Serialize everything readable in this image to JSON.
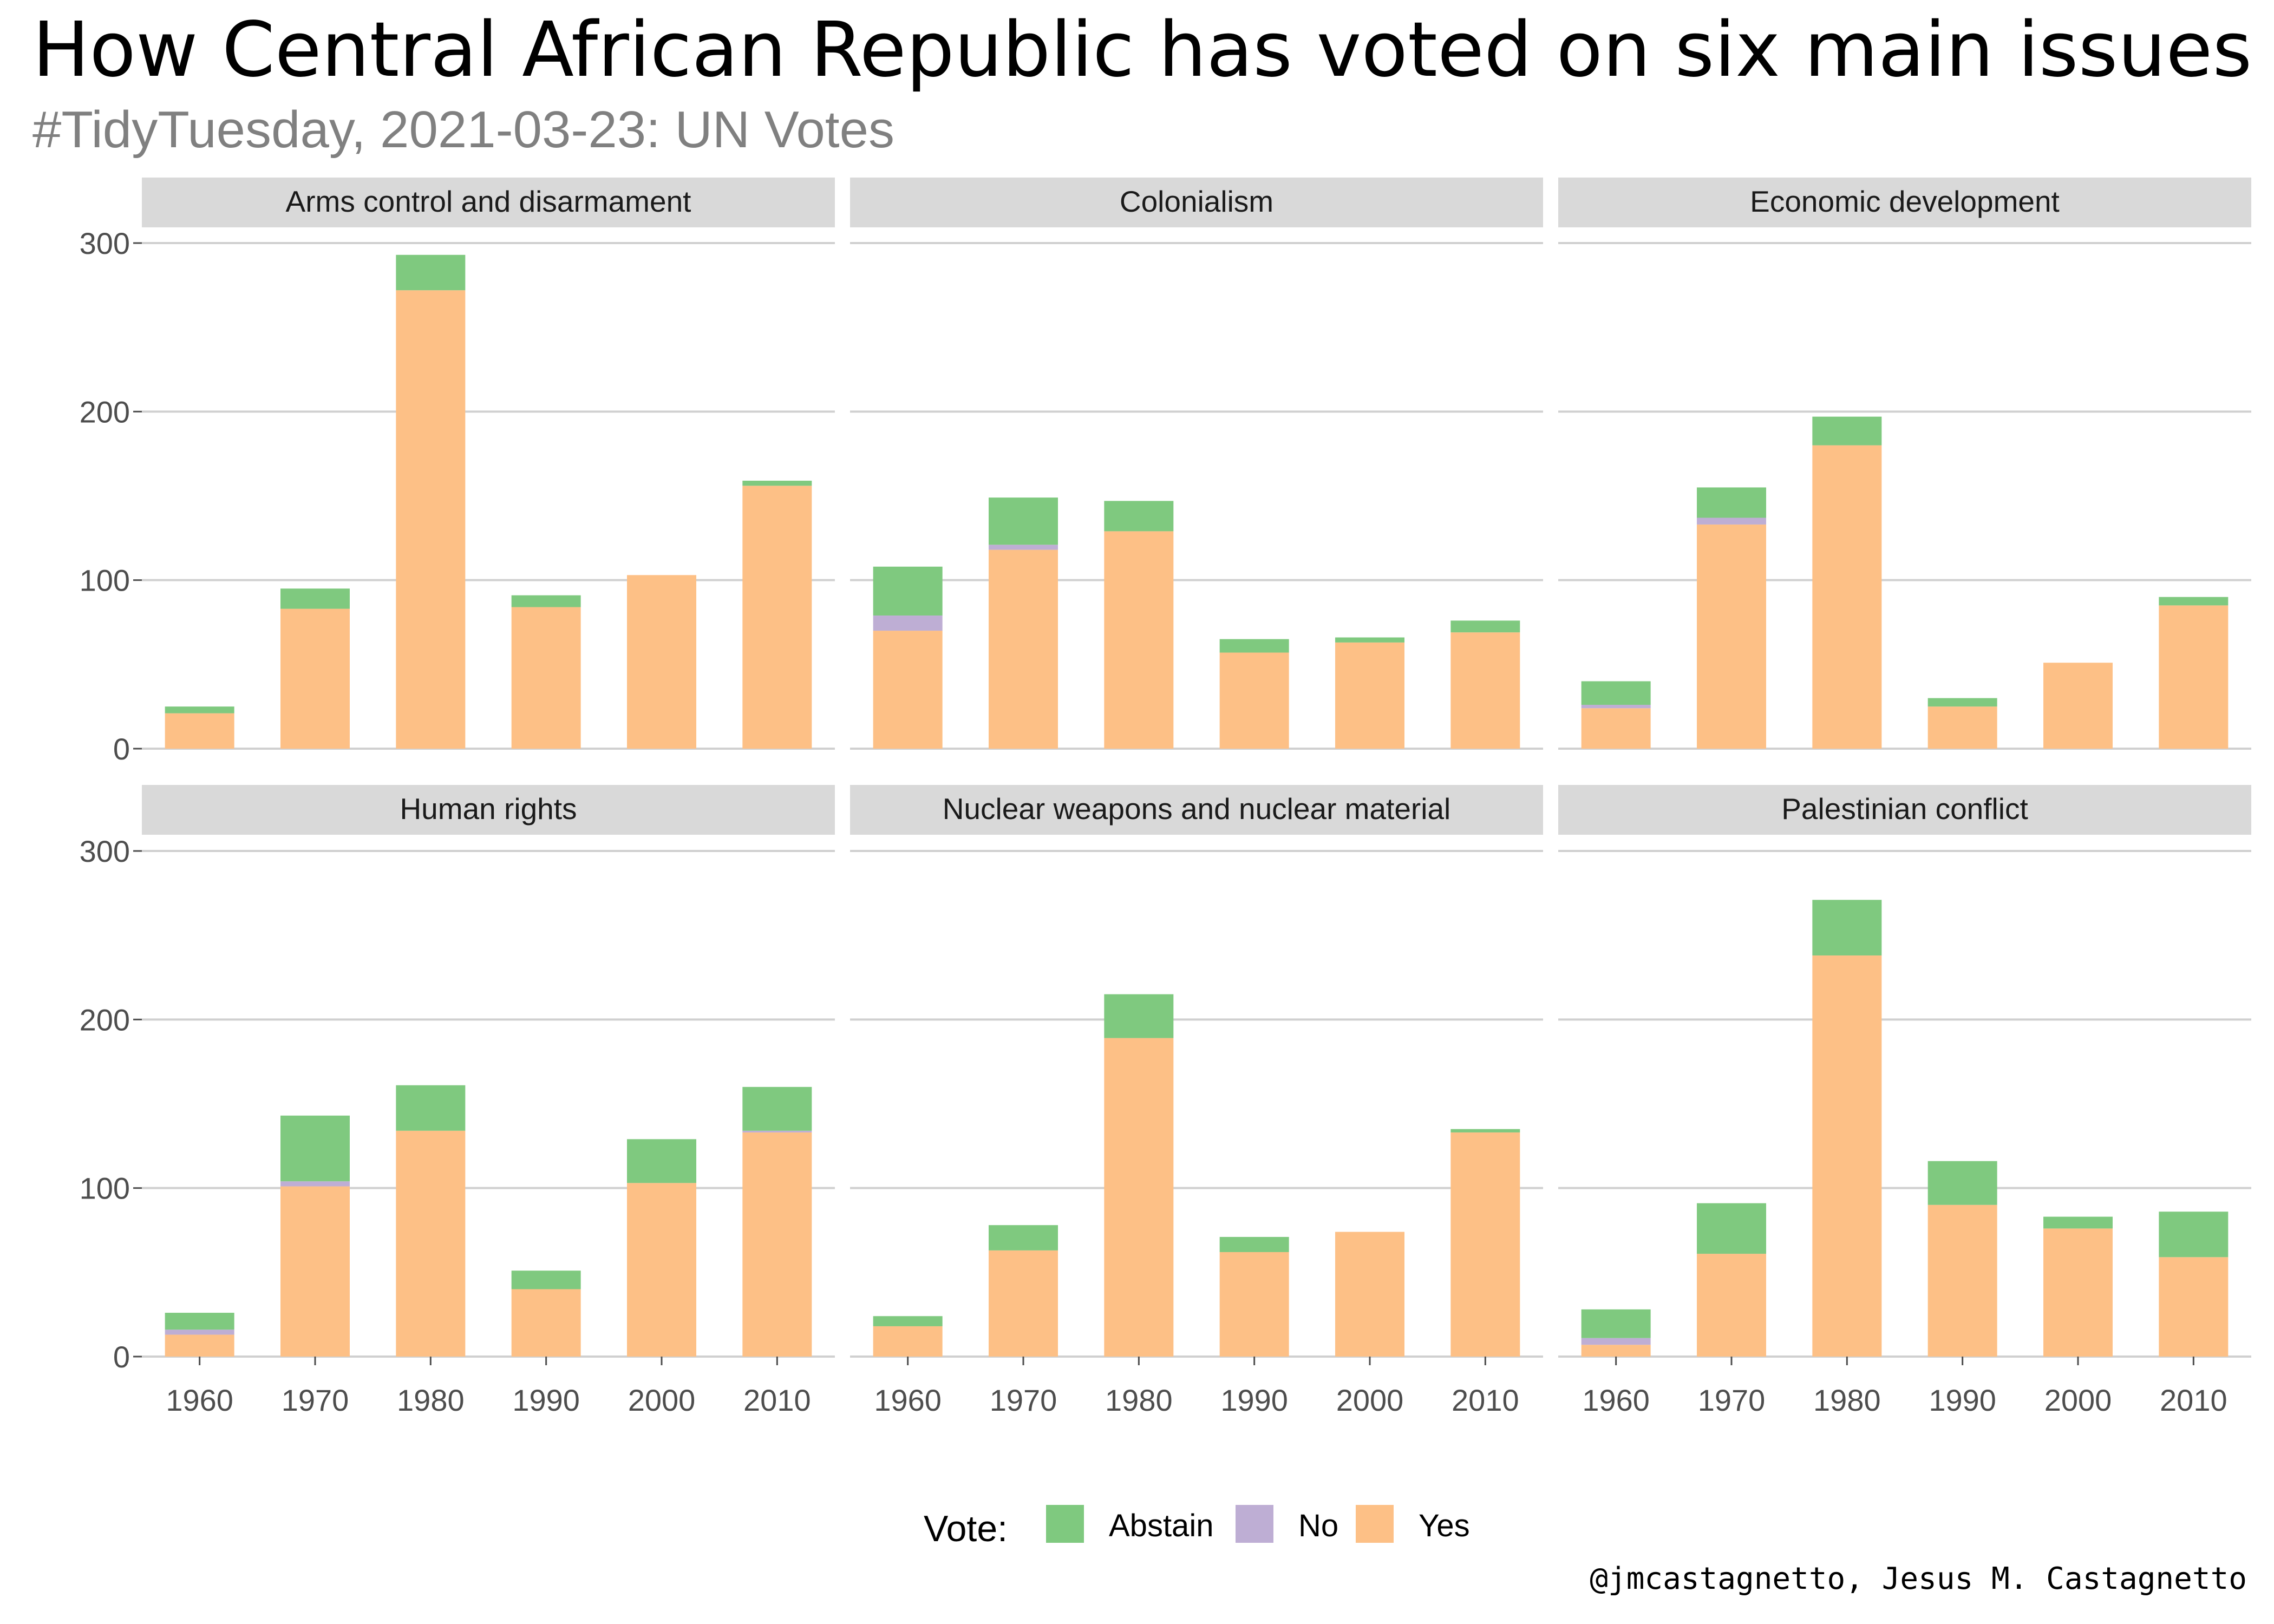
{
  "title": "How Central African Republic has voted on six main issues in the",
  "subtitle": "#TidyTuesday, 2021-03-23: UN Votes",
  "caption": "@jmcastagnetto, Jesus M. Castagnetto",
  "legend": {
    "title": "Vote:",
    "items": [
      {
        "label": "Abstain",
        "color": "#7FC97F"
      },
      {
        "label": "No",
        "color": "#BEAED4"
      },
      {
        "label": "Yes",
        "color": "#FDC086"
      }
    ]
  },
  "chart_data": {
    "type": "bar",
    "stacked": true,
    "facets": [
      {
        "name": "Arms control and disarmament",
        "categories": [
          "1960",
          "1970",
          "1980",
          "1990",
          "2000",
          "2010"
        ],
        "series": [
          {
            "name": "Yes",
            "values": [
              21,
              83,
              272,
              84,
              103,
              156
            ]
          },
          {
            "name": "No",
            "values": [
              0,
              0,
              0,
              0,
              0,
              0
            ]
          },
          {
            "name": "Abstain",
            "values": [
              4,
              12,
              21,
              7,
              0,
              3
            ]
          }
        ]
      },
      {
        "name": "Colonialism",
        "categories": [
          "1960",
          "1970",
          "1980",
          "1990",
          "2000",
          "2010"
        ],
        "series": [
          {
            "name": "Yes",
            "values": [
              70,
              118,
              129,
              57,
              63,
              69
            ]
          },
          {
            "name": "No",
            "values": [
              9,
              3,
              0,
              0,
              0,
              0
            ]
          },
          {
            "name": "Abstain",
            "values": [
              29,
              28,
              18,
              8,
              3,
              7
            ]
          }
        ]
      },
      {
        "name": "Economic development",
        "categories": [
          "1960",
          "1970",
          "1980",
          "1990",
          "2000",
          "2010"
        ],
        "series": [
          {
            "name": "Yes",
            "values": [
              24,
              133,
              180,
              25,
              51,
              85
            ]
          },
          {
            "name": "No",
            "values": [
              2,
              4,
              0,
              0,
              0,
              0
            ]
          },
          {
            "name": "Abstain",
            "values": [
              14,
              18,
              17,
              5,
              0,
              5
            ]
          }
        ]
      },
      {
        "name": "Human rights",
        "categories": [
          "1960",
          "1970",
          "1980",
          "1990",
          "2000",
          "2010"
        ],
        "series": [
          {
            "name": "Yes",
            "values": [
              13,
              101,
              134,
              40,
              103,
              133
            ]
          },
          {
            "name": "No",
            "values": [
              3,
              3,
              0,
              0,
              0,
              1
            ]
          },
          {
            "name": "Abstain",
            "values": [
              10,
              39,
              27,
              11,
              26,
              26
            ]
          }
        ]
      },
      {
        "name": "Nuclear weapons and nuclear material",
        "categories": [
          "1960",
          "1970",
          "1980",
          "1990",
          "2000",
          "2010"
        ],
        "series": [
          {
            "name": "Yes",
            "values": [
              18,
              63,
              189,
              62,
              74,
              133
            ]
          },
          {
            "name": "No",
            "values": [
              0,
              0,
              0,
              0,
              0,
              0
            ]
          },
          {
            "name": "Abstain",
            "values": [
              6,
              15,
              26,
              9,
              0,
              2
            ]
          }
        ]
      },
      {
        "name": "Palestinian conflict",
        "categories": [
          "1960",
          "1970",
          "1980",
          "1990",
          "2000",
          "2010"
        ],
        "series": [
          {
            "name": "Yes",
            "values": [
              7,
              61,
              238,
              90,
              76,
              59
            ]
          },
          {
            "name": "No",
            "values": [
              4,
              0,
              0,
              0,
              0,
              0
            ]
          },
          {
            "name": "Abstain",
            "values": [
              17,
              30,
              33,
              26,
              7,
              27
            ]
          }
        ]
      }
    ],
    "xlabel": "",
    "ylabel": "",
    "ylim": [
      0,
      300
    ],
    "yticks": [
      0,
      100,
      200,
      300
    ],
    "grid": true,
    "legend_position": "bottom"
  }
}
